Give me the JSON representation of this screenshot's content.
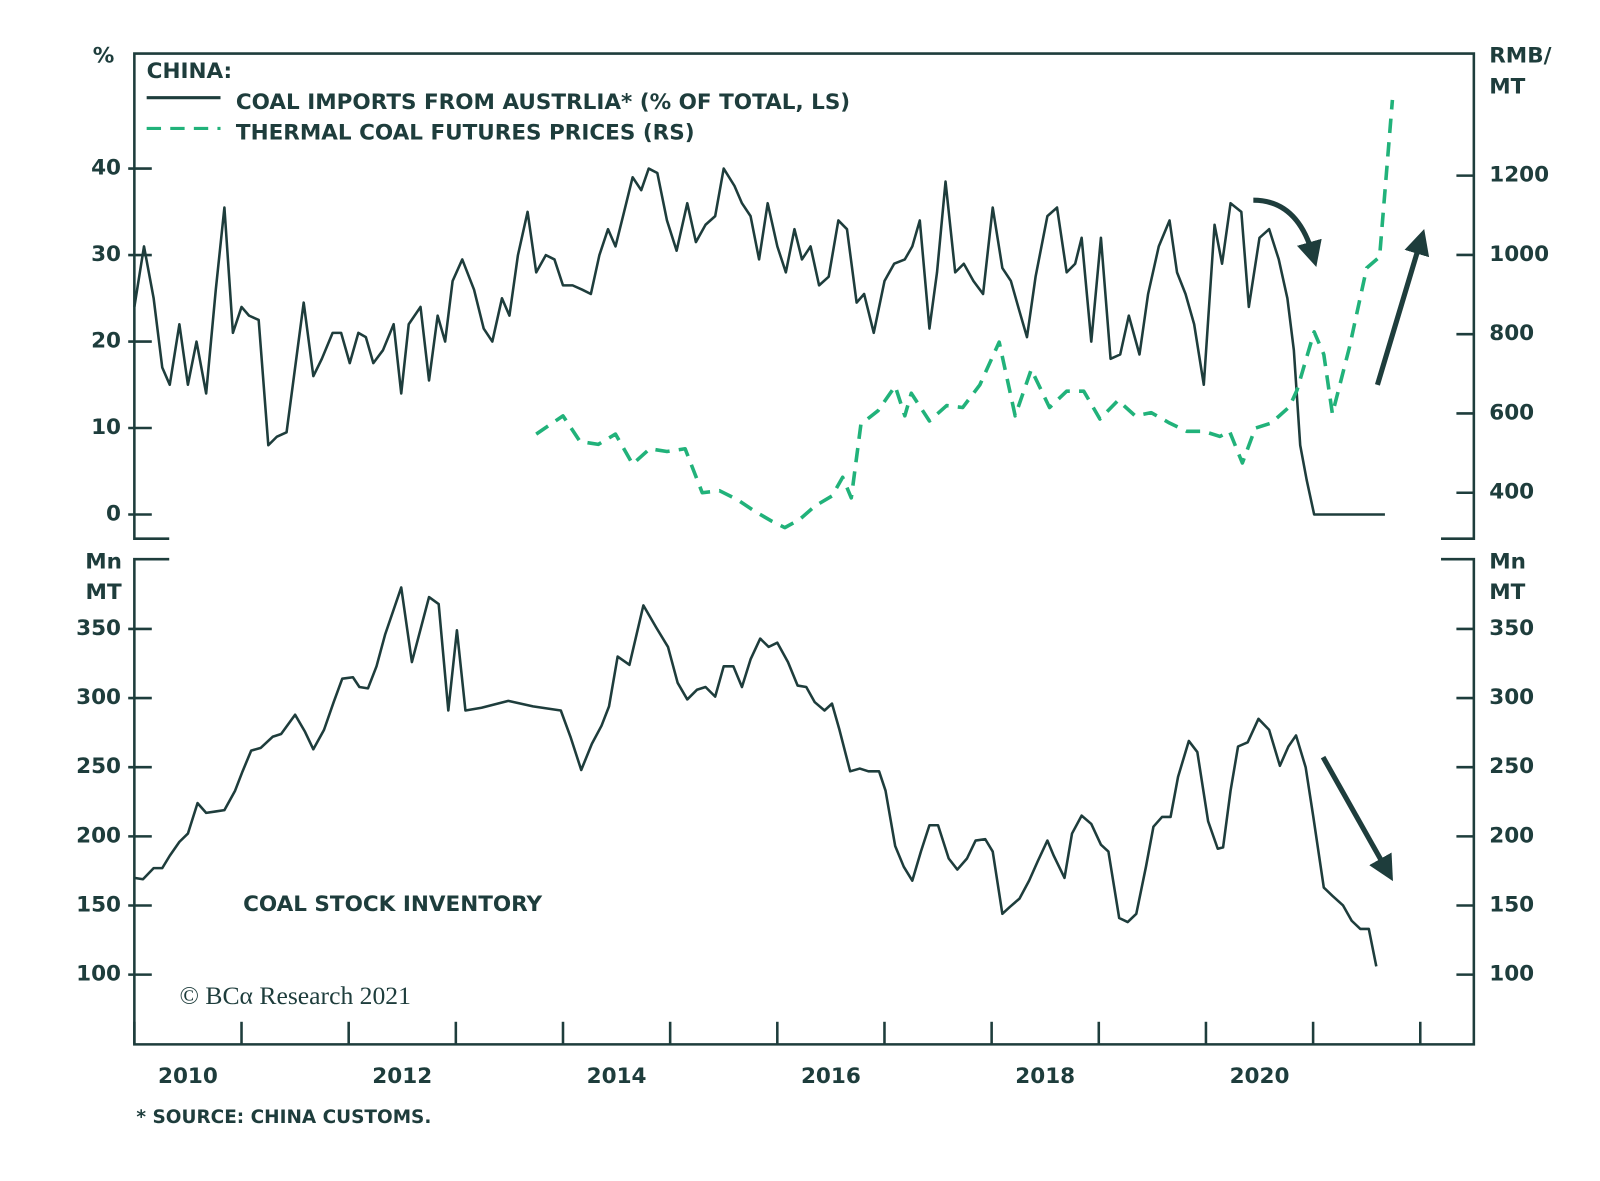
{
  "chart_data": [
    {
      "type": "line",
      "title": "CHINA:",
      "ylabel": [
        "%"
      ],
      "y2label": [
        "RMB/",
        "MT"
      ],
      "xlim": [
        2010,
        2022.5
      ],
      "ylim": [
        -2.8,
        53.3
      ],
      "yticks": [
        0,
        10,
        20,
        30,
        40
      ],
      "y2lim": [
        284,
        1508
      ],
      "y2ticks": [
        400,
        600,
        800,
        1000,
        1200
      ],
      "series": [
        {
          "name": "COAL IMPORTS FROM AUSTRLIA* (% OF TOTAL, LS)",
          "color": "#1e3d3c",
          "style": "solid",
          "x": [
            2010,
            2010.09,
            2010.18,
            2010.26,
            2010.33,
            2010.42,
            2010.5,
            2010.58,
            2010.67,
            2010.76,
            2010.84,
            2010.92,
            2011,
            2011.07,
            2011.16,
            2011.25,
            2011.33,
            2011.42,
            2011.58,
            2011.67,
            2011.75,
            2011.85,
            2011.93,
            2012.01,
            2012.09,
            2012.16,
            2012.23,
            2012.32,
            2012.42,
            2012.49,
            2012.56,
            2012.67,
            2012.75,
            2012.83,
            2012.9,
            2012.97,
            2013.06,
            2013.17,
            2013.26,
            2013.34,
            2013.43,
            2013.5,
            2013.58,
            2013.67,
            2013.75,
            2013.84,
            2013.92,
            2014,
            2014.09,
            2014.18,
            2014.26,
            2014.34,
            2014.42,
            2014.49,
            2014.57,
            2014.65,
            2014.73,
            2014.8,
            2014.88,
            2014.97,
            2015.06,
            2015.16,
            2015.24,
            2015.33,
            2015.42,
            2015.5,
            2015.6,
            2015.67,
            2015.75,
            2015.83,
            2015.91,
            2016,
            2016.08,
            2016.16,
            2016.23,
            2016.31,
            2016.39,
            2016.48,
            2016.57,
            2016.65,
            2016.74,
            2016.81,
            2016.9,
            2017,
            2017.09,
            2017.19,
            2017.26,
            2017.33,
            2017.42,
            2017.49,
            2017.57,
            2017.66,
            2017.74,
            2017.83,
            2017.92,
            2018.01,
            2018.1,
            2018.18,
            2018.26,
            2018.33,
            2018.41,
            2018.52,
            2018.61,
            2018.7,
            2018.78,
            2018.84,
            2018.93,
            2019.02,
            2019.11,
            2019.2,
            2019.28,
            2019.38,
            2019.46,
            2019.56,
            2019.66,
            2019.73,
            2019.81,
            2019.89,
            2019.98,
            2020.08,
            2020.15,
            2020.23,
            2020.33,
            2020.4,
            2020.5,
            2020.59,
            2020.68,
            2020.76,
            2020.82,
            2020.88,
            2020.94,
            2021.01,
            2021.67
          ],
          "values": [
            24,
            31,
            25,
            17,
            15,
            22,
            15,
            20,
            14,
            26,
            35.5,
            21,
            24,
            23,
            22.5,
            8,
            9,
            9.5,
            24.5,
            16,
            18,
            21,
            21,
            17.5,
            21,
            20.5,
            17.5,
            19,
            22,
            14,
            22,
            24,
            15.5,
            23,
            20,
            27,
            29.5,
            26,
            21.5,
            20,
            25,
            23,
            30,
            35,
            28,
            30,
            29.5,
            26.5,
            26.5,
            26,
            25.5,
            30,
            33,
            31,
            35,
            39,
            37.5,
            40,
            39.5,
            34,
            30.5,
            36,
            31.5,
            33.5,
            34.5,
            40,
            38,
            36,
            34.5,
            29.5,
            36,
            31,
            28,
            33,
            29.5,
            31,
            26.5,
            27.5,
            34,
            33,
            24.5,
            25.5,
            21,
            27,
            29,
            29.5,
            31,
            34,
            21.5,
            28,
            38.5,
            28,
            29,
            27,
            25.5,
            35.5,
            28.5,
            27,
            23.5,
            20.5,
            27.5,
            34.5,
            35.5,
            28,
            29,
            32,
            20,
            32,
            18,
            18.5,
            23,
            18.5,
            25.5,
            31,
            34,
            28,
            25.5,
            22,
            15,
            33.5,
            29,
            36,
            35,
            24,
            32,
            33,
            29.5,
            25,
            19,
            8,
            4,
            0,
            0
          ]
        },
        {
          "name": "THERMAL COAL FUTURES PRICES (RS)",
          "color": "#21b27a",
          "style": "dashed",
          "axis": "y2",
          "x": [
            2013.75,
            2014,
            2014.16,
            2014.33,
            2014.49,
            2014.65,
            2014.81,
            2014.97,
            2015.14,
            2015.3,
            2015.46,
            2015.63,
            2015.79,
            2015.95,
            2016.07,
            2016.21,
            2016.35,
            2016.51,
            2016.61,
            2016.69,
            2016.78,
            2016.94,
            2017.1,
            2017.19,
            2017.25,
            2017.42,
            2017.58,
            2017.73,
            2017.89,
            2018.07,
            2018.22,
            2018.37,
            2018.54,
            2018.7,
            2018.86,
            2019.01,
            2019.18,
            2019.34,
            2019.49,
            2019.66,
            2019.82,
            2019.98,
            2020.13,
            2020.22,
            2020.34,
            2020.46,
            2020.61,
            2020.78,
            2020.85,
            2021.01,
            2021.1,
            2021.18,
            2021.34,
            2021.5,
            2021.62,
            2021.74
          ],
          "values": [
            548,
            594,
            529,
            522,
            548,
            472,
            511,
            504,
            511,
            400,
            405,
            382,
            353,
            328,
            312,
            333,
            366,
            392,
            439,
            387,
            573,
            607,
            669,
            594,
            651,
            581,
            620,
            615,
            672,
            780,
            594,
            711,
            615,
            656,
            656,
            586,
            633,
            594,
            602,
            576,
            555,
            555,
            542,
            555,
            475,
            563,
            576,
            617,
            659,
            806,
            749,
            599,
            768,
            967,
            995,
            1391
          ]
        }
      ]
    },
    {
      "type": "line",
      "ylabel": [
        "Mn",
        "MT"
      ],
      "y2label": [
        "Mn",
        "MT"
      ],
      "annotations": [
        "COAL STOCK INVENTORY",
        "© BCα Research 2021"
      ],
      "xlim": [
        2010,
        2022.5
      ],
      "xticks": [
        2010,
        2011,
        2012,
        2013,
        2014,
        2015,
        2016,
        2017,
        2018,
        2019,
        2020,
        2021,
        2022
      ],
      "xlabels": [
        2010,
        2012,
        2014,
        2016,
        2018,
        2020
      ],
      "ylim": [
        49.6,
        400.4
      ],
      "yticks": [
        100,
        150,
        200,
        250,
        300,
        350
      ],
      "y2lim": [
        49.6,
        400.4
      ],
      "y2ticks": [
        100,
        150,
        200,
        250,
        300,
        350
      ],
      "series": [
        {
          "color": "#1e3d3c",
          "style": "solid",
          "x": [
            2010,
            2010.08,
            2010.18,
            2010.26,
            2010.33,
            2010.42,
            2010.5,
            2010.59,
            2010.67,
            2010.76,
            2010.84,
            2010.94,
            2011.01,
            2011.09,
            2011.18,
            2011.29,
            2011.37,
            2011.5,
            2011.59,
            2011.67,
            2011.77,
            2011.86,
            2011.94,
            2012.04,
            2012.1,
            2012.18,
            2012.26,
            2012.34,
            2012.49,
            2012.59,
            2012.75,
            2012.84,
            2012.93,
            2013.01,
            2013.09,
            2013.24,
            2013.49,
            2013.72,
            2013.98,
            2014.07,
            2014.17,
            2014.27,
            2014.36,
            2014.43,
            2014.51,
            2014.62,
            2014.75,
            2014.87,
            2014.98,
            2015.07,
            2015.16,
            2015.25,
            2015.33,
            2015.42,
            2015.5,
            2015.59,
            2015.67,
            2015.75,
            2015.84,
            2015.92,
            2016,
            2016.1,
            2016.19,
            2016.27,
            2016.35,
            2016.44,
            2016.51,
            2016.58,
            2016.68,
            2016.77,
            2016.85,
            2016.95,
            2017.01,
            2017.1,
            2017.18,
            2017.26,
            2017.34,
            2017.42,
            2017.5,
            2017.6,
            2017.68,
            2017.77,
            2017.85,
            2017.94,
            2018.01,
            2018.1,
            2018.17,
            2018.26,
            2018.35,
            2018.43,
            2018.52,
            2018.58,
            2018.68,
            2018.75,
            2018.84,
            2018.93,
            2019.02,
            2019.09,
            2019.19,
            2019.27,
            2019.35,
            2019.44,
            2019.51,
            2019.59,
            2019.67,
            2019.74,
            2019.84,
            2019.92,
            2020.02,
            2020.11,
            2020.16,
            2020.23,
            2020.3,
            2020.39,
            2020.49,
            2020.59,
            2020.69,
            2020.77,
            2020.84,
            2020.93,
            2021,
            2021.1,
            2021.18,
            2021.28,
            2021.36,
            2021.44,
            2021.52,
            2021.59
          ],
          "values": [
            170,
            169,
            177,
            177,
            186,
            196,
            202,
            224,
            217,
            218,
            219,
            233,
            247,
            262,
            264,
            272,
            274,
            288,
            276,
            263,
            277,
            297,
            314,
            315,
            308,
            307,
            323,
            346,
            380,
            326,
            373,
            368,
            291,
            349,
            291,
            293,
            298,
            294,
            291,
            272,
            248,
            267,
            280,
            294,
            330,
            324,
            367,
            351,
            337,
            311,
            299,
            306,
            308,
            301,
            323,
            323,
            308,
            328,
            343,
            337,
            340,
            326,
            309,
            308,
            297,
            291,
            296,
            277,
            247,
            249,
            247,
            247,
            233,
            193,
            178,
            168,
            189,
            208,
            208,
            184,
            176,
            184,
            197,
            198,
            189,
            144,
            149,
            155,
            168,
            182,
            197,
            186,
            170,
            202,
            215,
            209,
            194,
            189,
            141,
            138,
            144,
            178,
            207,
            214,
            214,
            243,
            269,
            261,
            211,
            191,
            192,
            233,
            265,
            268,
            285,
            277,
            251,
            265,
            273,
            250,
            215,
            163,
            157,
            150,
            139,
            133,
            133,
            106
          ]
        }
      ]
    }
  ],
  "footnote": "* SOURCE: CHINA CUSTOMS."
}
